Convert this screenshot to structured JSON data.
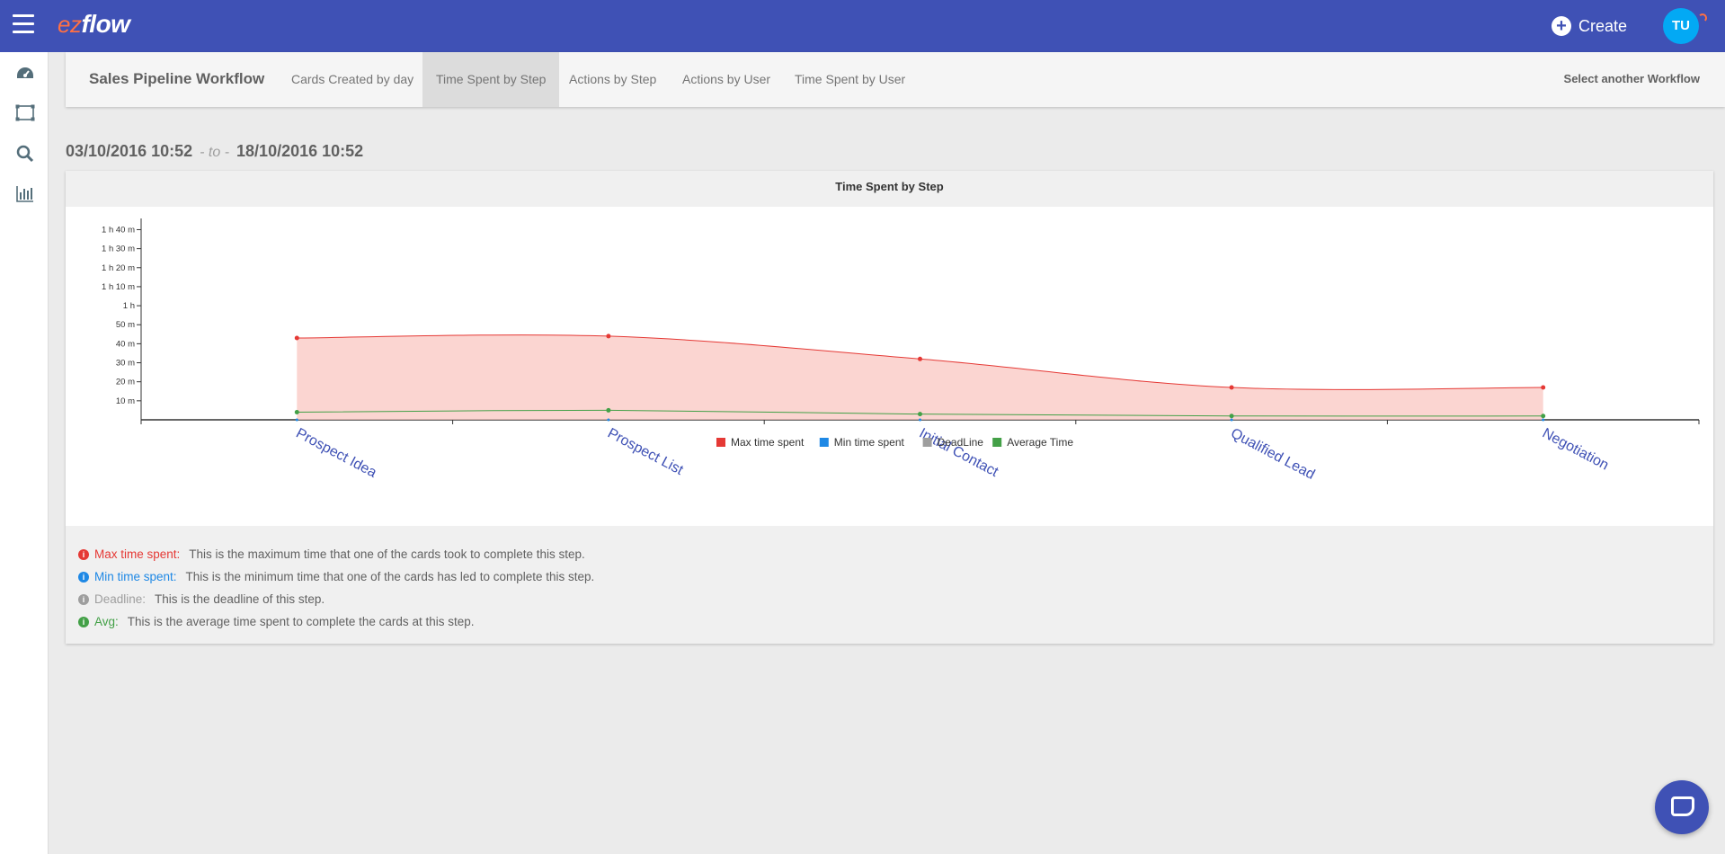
{
  "header": {
    "logo_prefix": "ez",
    "logo_main": "flow",
    "create_label": "Create",
    "avatar_initials": "TU"
  },
  "sidebar": {
    "icons": [
      "dashboard-icon",
      "workflow-icon",
      "search-icon",
      "reports-icon"
    ],
    "help_label": "?"
  },
  "nav": {
    "title": "Sales Pipeline Workflow",
    "tabs": [
      {
        "label": "Cards Created by day"
      },
      {
        "label": "Time Spent by Step"
      },
      {
        "label": "Actions by Step"
      },
      {
        "label": "Actions by User"
      },
      {
        "label": "Time Spent by User"
      }
    ],
    "active_tab": "Time Spent by Step",
    "right_link": "Select another Workflow"
  },
  "daterange": {
    "from": "03/10/2016 10:52",
    "separator": "- to -",
    "to": "18/10/2016 10:52"
  },
  "chart_data": {
    "type": "area",
    "title": "Time Spent by Step",
    "categories": [
      "Prospect Idea",
      "Prospect List",
      "Initial Contact",
      "Qualified Lead",
      "Negotiation"
    ],
    "y_tick_labels": [
      "10 m",
      "20 m",
      "30 m",
      "40 m",
      "50 m",
      "1 h",
      "1 h 10 m",
      "1 h 20 m",
      "1 h 30 m",
      "1 h 40 m"
    ],
    "y_tick_minutes": [
      10,
      20,
      30,
      40,
      50,
      60,
      70,
      80,
      90,
      100
    ],
    "ylim": [
      0,
      104
    ],
    "series": [
      {
        "name": "Max time spent",
        "color": "#e53935",
        "values_minutes": [
          43,
          44,
          32,
          17,
          17
        ]
      },
      {
        "name": "Min time spent",
        "color": "#1e88e5",
        "values_minutes": [
          0,
          0,
          0,
          0,
          0
        ]
      },
      {
        "name": "DeadLine",
        "color": "#9e9e9e",
        "values_minutes": []
      },
      {
        "name": "Average Time",
        "color": "#43a047",
        "values_minutes": [
          4,
          5,
          3,
          2,
          2
        ]
      }
    ],
    "legend_position": "bottom-center"
  },
  "notes": [
    {
      "key": "Max time spent:",
      "desc": "This is the maximum time that one of the cards took to complete this step.",
      "color": "#e53935"
    },
    {
      "key": "Min time spent:",
      "desc": "This is the minimum time that one of the cards has led to complete this step.",
      "color": "#1e88e5"
    },
    {
      "key": "Deadline:",
      "desc": "This is the deadline of this step.",
      "color": "#9e9e9e"
    },
    {
      "key": "Avg:",
      "desc": "This is the average time spent to complete the cards at this step.",
      "color": "#43a047"
    }
  ]
}
